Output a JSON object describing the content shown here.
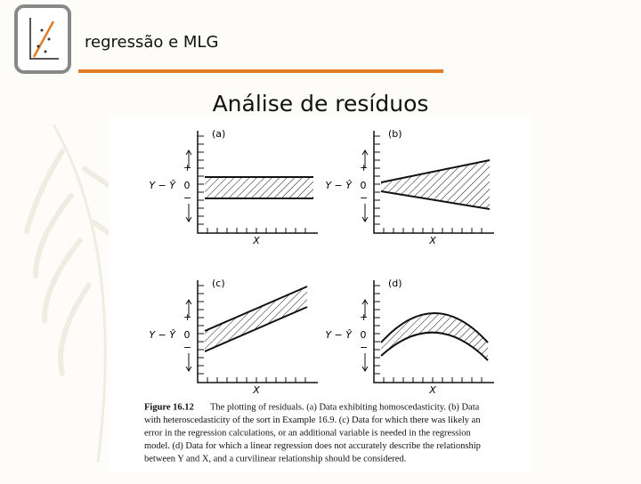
{
  "header": {
    "title": "regressão e MLG"
  },
  "slide": {
    "title": "Análise de resíduos"
  },
  "figure": {
    "panels": [
      {
        "label": "(a)",
        "y_label": "Y − Ŷ",
        "zero": "0",
        "plus": "+",
        "minus": "−",
        "x_label": "X"
      },
      {
        "label": "(b)",
        "y_label": "Y − Ŷ",
        "zero": "0",
        "plus": "+",
        "minus": "−",
        "x_label": "X"
      },
      {
        "label": "(c)",
        "y_label": "Y − Ŷ",
        "zero": "0",
        "plus": "+",
        "minus": "−",
        "x_label": "X"
      },
      {
        "label": "(d)",
        "y_label": "Y − Ŷ",
        "zero": "0",
        "plus": "+",
        "minus": "−",
        "x_label": "X"
      }
    ],
    "caption": {
      "label": "Figure 16.12",
      "lines": [
        "The plotting of residuals. (a) Data exhibiting homoscedasticity. (b) Data",
        "with heteroscedasticity of the sort in Example 16.9. (c) Data for which there was likely an",
        "error in the regression calculations, or an additional variable is needed in the regression",
        "model. (d) Data for which a linear regression does not accurately describe the relationship",
        "between Y and X, and a curvilinear relationship should be considered."
      ]
    }
  }
}
